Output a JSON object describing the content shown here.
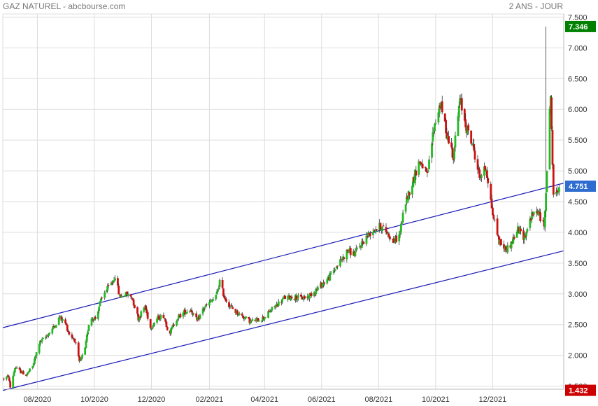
{
  "header": {
    "title": "GAZ NATUREL - abcbourse.com",
    "period": "2 ANS - JOUR"
  },
  "chart_data": {
    "type": "candlestick",
    "title": "GAZ NATUREL - abcbourse.com",
    "period_label": "2 ANS - JOUR",
    "ylim": [
      1.45,
      7.55
    ],
    "y_ticks": [
      1.5,
      2.0,
      2.5,
      3.0,
      3.5,
      4.0,
      4.5,
      5.0,
      5.5,
      6.0,
      6.5,
      7.0,
      7.5
    ],
    "y_tick_labels": [
      "1.500",
      "2.000",
      "2.500",
      "3.000",
      "3.500",
      "4.000",
      "4.500",
      "5.000",
      "5.500",
      "6.000",
      "6.500",
      "7.000",
      "7.500"
    ],
    "x_range": [
      "2020-06-25",
      "2022-02-15"
    ],
    "x_ticks": [
      {
        "date": "2020-08-01",
        "label": "08/2020"
      },
      {
        "date": "2020-10-01",
        "label": "10/2020"
      },
      {
        "date": "2020-12-01",
        "label": "12/2020"
      },
      {
        "date": "2021-02-01",
        "label": "02/2021"
      },
      {
        "date": "2021-04-01",
        "label": "04/2021"
      },
      {
        "date": "2021-06-01",
        "label": "06/2021"
      },
      {
        "date": "2021-08-01",
        "label": "08/2021"
      },
      {
        "date": "2021-10-01",
        "label": "10/2021"
      },
      {
        "date": "2021-12-01",
        "label": "12/2021"
      }
    ],
    "grid": true,
    "price_path": [
      [
        "2020-06-26",
        1.62
      ],
      [
        "2020-07-01",
        1.66
      ],
      [
        "2020-07-03",
        1.48
      ],
      [
        "2020-07-08",
        1.8
      ],
      [
        "2020-07-14",
        1.74
      ],
      [
        "2020-07-20",
        1.68
      ],
      [
        "2020-07-27",
        1.82
      ],
      [
        "2020-08-03",
        2.2
      ],
      [
        "2020-08-10",
        2.3
      ],
      [
        "2020-08-18",
        2.45
      ],
      [
        "2020-08-25",
        2.62
      ],
      [
        "2020-08-31",
        2.52
      ],
      [
        "2020-09-04",
        2.35
      ],
      [
        "2020-09-10",
        2.25
      ],
      [
        "2020-09-15",
        1.88
      ],
      [
        "2020-09-21",
        2.1
      ],
      [
        "2020-09-26",
        2.62
      ],
      [
        "2020-10-02",
        2.6
      ],
      [
        "2020-10-07",
        2.85
      ],
      [
        "2020-10-12",
        3.02
      ],
      [
        "2020-10-20",
        3.18
      ],
      [
        "2020-10-23",
        3.3
      ],
      [
        "2020-10-28",
        2.95
      ],
      [
        "2020-11-03",
        3.0
      ],
      [
        "2020-11-10",
        2.95
      ],
      [
        "2020-11-17",
        2.6
      ],
      [
        "2020-11-24",
        2.8
      ],
      [
        "2020-11-30",
        2.45
      ],
      [
        "2020-12-07",
        2.6
      ],
      [
        "2020-12-14",
        2.65
      ],
      [
        "2020-12-20",
        2.35
      ],
      [
        "2020-12-28",
        2.6
      ],
      [
        "2021-01-05",
        2.7
      ],
      [
        "2021-01-12",
        2.75
      ],
      [
        "2021-01-19",
        2.55
      ],
      [
        "2021-01-25",
        2.75
      ],
      [
        "2021-02-01",
        2.85
      ],
      [
        "2021-02-08",
        2.95
      ],
      [
        "2021-02-12",
        3.2
      ],
      [
        "2021-02-17",
        2.95
      ],
      [
        "2021-02-23",
        2.8
      ],
      [
        "2021-03-02",
        2.7
      ],
      [
        "2021-03-10",
        2.62
      ],
      [
        "2021-03-17",
        2.55
      ],
      [
        "2021-03-25",
        2.58
      ],
      [
        "2021-04-01",
        2.62
      ],
      [
        "2021-04-09",
        2.75
      ],
      [
        "2021-04-16",
        2.85
      ],
      [
        "2021-04-23",
        2.94
      ],
      [
        "2021-05-03",
        2.95
      ],
      [
        "2021-05-10",
        2.93
      ],
      [
        "2021-05-17",
        2.95
      ],
      [
        "2021-05-25",
        3.05
      ],
      [
        "2021-06-01",
        3.15
      ],
      [
        "2021-06-08",
        3.25
      ],
      [
        "2021-06-15",
        3.4
      ],
      [
        "2021-06-22",
        3.55
      ],
      [
        "2021-06-29",
        3.7
      ],
      [
        "2021-07-06",
        3.65
      ],
      [
        "2021-07-13",
        3.8
      ],
      [
        "2021-07-20",
        3.95
      ],
      [
        "2021-07-27",
        4.05
      ],
      [
        "2021-08-03",
        4.1
      ],
      [
        "2021-08-10",
        4.0
      ],
      [
        "2021-08-17",
        3.85
      ],
      [
        "2021-08-23",
        3.95
      ],
      [
        "2021-08-30",
        4.5
      ],
      [
        "2021-09-06",
        4.8
      ],
      [
        "2021-09-13",
        5.15
      ],
      [
        "2021-09-17",
        5.1
      ],
      [
        "2021-09-22",
        4.9
      ],
      [
        "2021-09-29",
        5.7
      ],
      [
        "2021-10-06",
        6.1
      ],
      [
        "2021-10-13",
        5.6
      ],
      [
        "2021-10-20",
        5.25
      ],
      [
        "2021-10-27",
        6.15
      ],
      [
        "2021-11-03",
        5.7
      ],
      [
        "2021-11-10",
        5.4
      ],
      [
        "2021-11-17",
        4.9
      ],
      [
        "2021-11-24",
        5.05
      ],
      [
        "2021-12-01",
        4.3
      ],
      [
        "2021-12-08",
        3.85
      ],
      [
        "2021-12-15",
        3.72
      ],
      [
        "2021-12-20",
        3.8
      ],
      [
        "2021-12-28",
        4.05
      ],
      [
        "2022-01-04",
        3.92
      ],
      [
        "2022-01-11",
        4.25
      ],
      [
        "2022-01-18",
        4.35
      ],
      [
        "2022-01-25",
        4.1
      ],
      [
        "2022-02-01",
        6.25
      ],
      [
        "2022-02-04",
        4.55
      ],
      [
        "2022-02-10",
        4.75
      ]
    ],
    "spike": {
      "date": "2022-01-27",
      "high": 7.346,
      "low": 4.25
    },
    "channel_lines": [
      {
        "name": "upper",
        "start": {
          "date": "2020-06-25",
          "value": 2.45
        },
        "end": {
          "date": "2022-02-15",
          "value": 4.8
        }
      },
      {
        "name": "lower",
        "start": {
          "date": "2020-06-25",
          "value": 1.43
        },
        "end": {
          "date": "2022-02-15",
          "value": 3.7
        }
      }
    ],
    "badges": [
      {
        "label": "7.346",
        "value": 7.346,
        "color": "#008000"
      },
      {
        "label": "4.751",
        "value": 4.751,
        "color": "#2e6cd0"
      },
      {
        "label": "1.432",
        "value": 1.432,
        "color": "#cc0000"
      }
    ],
    "colors": {
      "up": "#22bb22",
      "down": "#cc1111",
      "wick": "#333333",
      "channel": "#1a1ab8",
      "grid": "#dddddd"
    }
  }
}
